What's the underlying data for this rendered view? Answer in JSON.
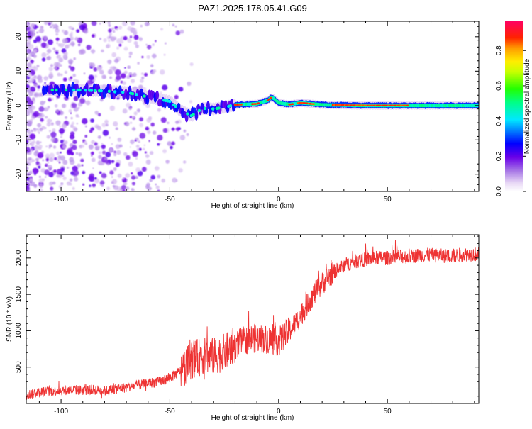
{
  "figure": {
    "title": "PAZ1.2025.178.05.41.G09"
  },
  "chart_data": [
    {
      "type": "heatmap",
      "xlabel": "Height of straight line (km)",
      "ylabel": "Frequency (Hz)",
      "xlim": [
        -116,
        92
      ],
      "ylim": [
        -25,
        24.5
      ],
      "xticks": [
        -100,
        -50,
        0,
        50
      ],
      "yticks": [
        -20,
        -10,
        0,
        10,
        20
      ],
      "colorbar": {
        "label": "Normalized spectral amplitude",
        "range": [
          0,
          0.97
        ],
        "ticks": [
          0.0,
          0.2,
          0.4,
          0.6,
          0.8
        ],
        "colormap": "rainbow (white-violet-blue-cyan-green-yellow-red-magenta)"
      },
      "ridge": {
        "description_points_x": [
          -105,
          -90,
          -80,
          -70,
          -60,
          -50,
          -45,
          -40,
          -35,
          -30,
          -25,
          -20,
          -10,
          -5,
          -3,
          0,
          5,
          10,
          20,
          40,
          60,
          80,
          92
        ],
        "description_points_freq": [
          4.5,
          4.5,
          4.2,
          3.8,
          2.5,
          1.2,
          -1.5,
          -3.0,
          -0.8,
          -1.0,
          -0.5,
          0.2,
          0.5,
          1.5,
          2.5,
          0.8,
          0.3,
          0.8,
          0.2,
          0.0,
          0.0,
          0.0,
          0.0
        ]
      },
      "grid": false
    },
    {
      "type": "line",
      "xlabel": "Height of straight line (km)",
      "ylabel": "SNR (10 * v/v)",
      "xlim": [
        -116,
        92
      ],
      "ylim": [
        0,
        2320
      ],
      "xticks": [
        -100,
        -50,
        0,
        50
      ],
      "yticks": [
        500,
        1000,
        1500,
        2000
      ],
      "series": [
        {
          "color": "#ee3333",
          "x": [
            -116,
            -110,
            -105,
            -100,
            -95,
            -90,
            -85,
            -80,
            -75,
            -70,
            -65,
            -60,
            -55,
            -50,
            -45,
            -40,
            -35,
            -30,
            -25,
            -20,
            -15,
            -10,
            -5,
            0,
            5,
            10,
            15,
            20,
            25,
            30,
            35,
            40,
            45,
            50,
            55,
            60,
            65,
            70,
            75,
            80,
            85,
            92
          ],
          "y": [
            120,
            150,
            170,
            180,
            190,
            180,
            190,
            170,
            200,
            220,
            250,
            280,
            300,
            350,
            450,
            600,
            650,
            650,
            700,
            800,
            880,
            900,
            880,
            850,
            1000,
            1200,
            1450,
            1650,
            1800,
            1900,
            1950,
            1980,
            2000,
            2000,
            2020,
            2020,
            2040,
            2040,
            2030,
            2030,
            2050,
            2050
          ]
        }
      ],
      "grid": false
    }
  ]
}
